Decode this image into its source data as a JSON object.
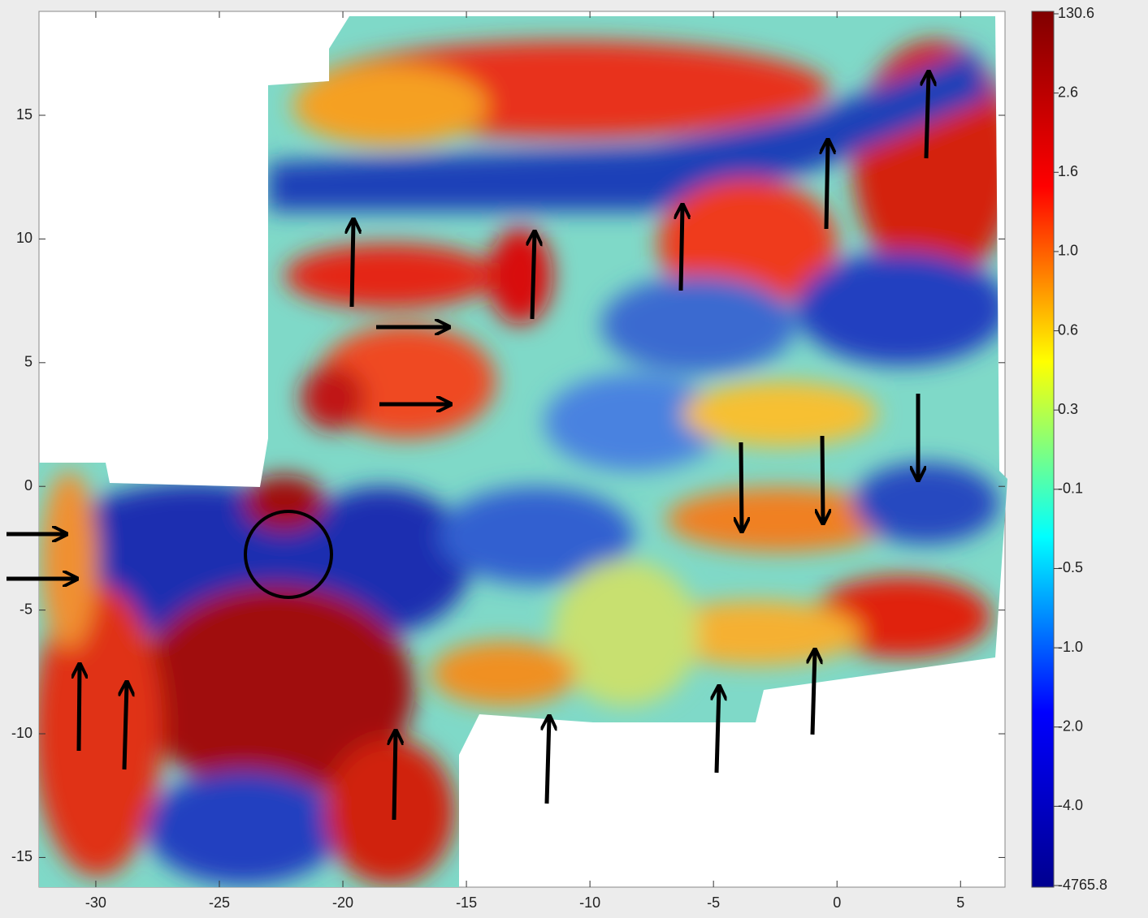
{
  "chart_data": {
    "type": "heatmap",
    "xlim": [
      -32.3,
      6.8
    ],
    "ylim": [
      -16.2,
      19.2
    ],
    "xticks": [
      -30,
      -25,
      -20,
      -15,
      -10,
      -5,
      0,
      5
    ],
    "yticks": [
      15,
      10,
      5,
      0,
      -5,
      -10,
      -15
    ],
    "colorbar": {
      "colors": [
        "#00008f",
        "#0000ff",
        "#00ffff",
        "#ffff00",
        "#ff0000",
        "#800000"
      ],
      "ticks": [
        130.6,
        2.6,
        1.6,
        {
          "value": 1,
          "label": "1.0"
        },
        0.6,
        0.3,
        -0.1,
        -0.5,
        {
          "value": -1,
          "label": "-1.0"
        },
        {
          "value": -2,
          "label": "-2.0"
        },
        {
          "value": -4,
          "label": "-4.0"
        },
        -4765.8
      ]
    }
  }
}
